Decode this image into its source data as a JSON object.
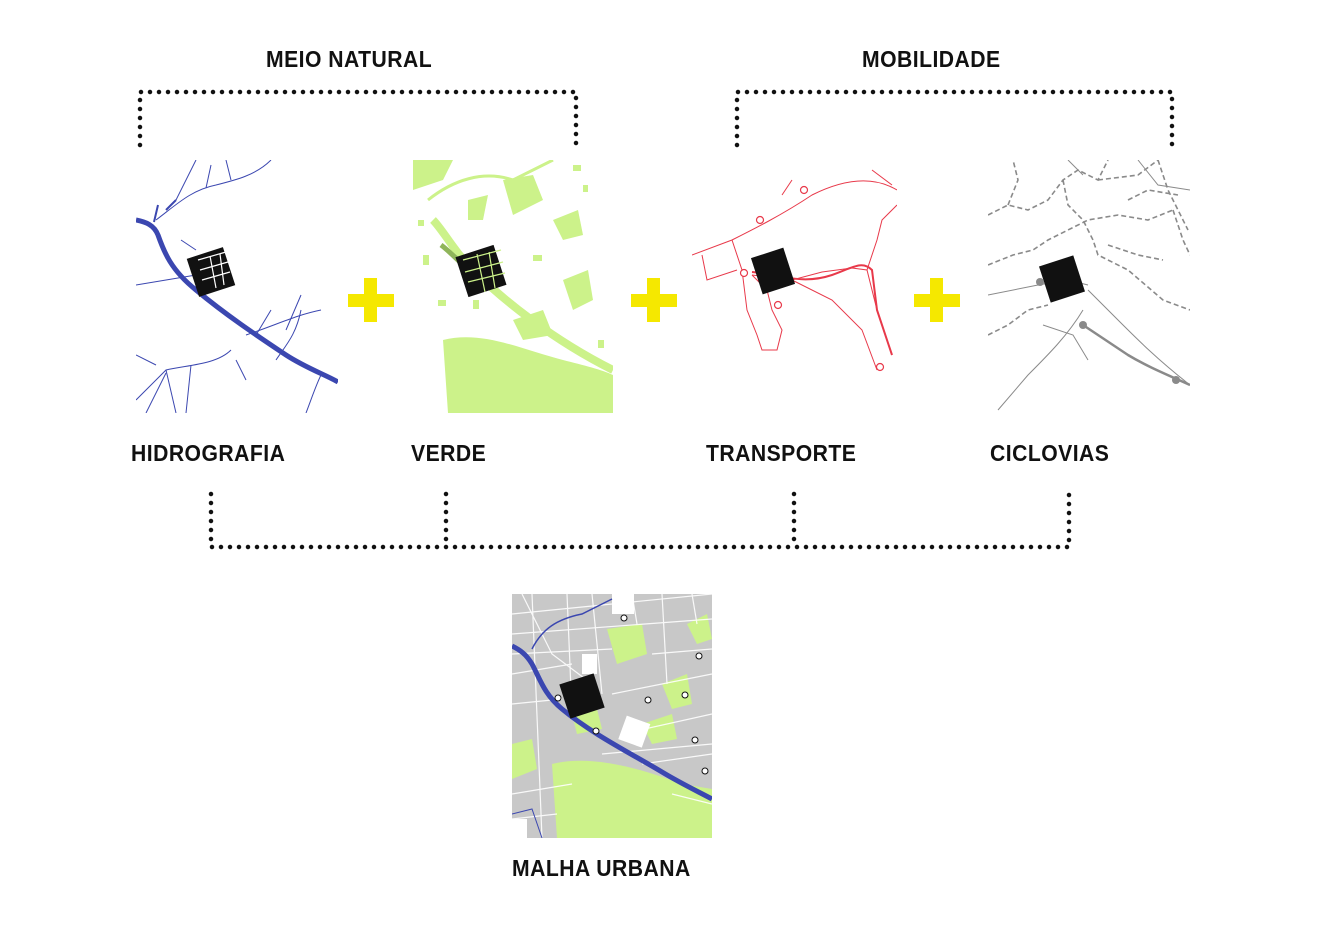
{
  "groups": {
    "natural": "MEIO NATURAL",
    "mobility": "MOBILIDADE"
  },
  "layers": {
    "hydrography": "HIDROGRAFIA",
    "green": "VERDE",
    "transport": "TRANSPORTE",
    "bike": "CICLOVIAS"
  },
  "result": "MALHA URBANA",
  "colors": {
    "water": "#3b47b0",
    "green": "#ccf28a",
    "transport": "#e8394a",
    "bike": "#8a8a8a",
    "plus": "#f5e800",
    "urban": "#c8c8c8"
  }
}
